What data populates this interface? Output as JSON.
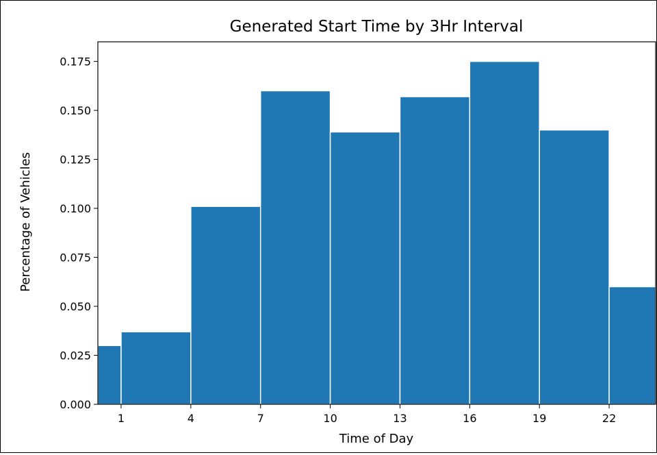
{
  "chart_data": {
    "type": "bar",
    "title": "Generated Start Time by 3Hr Interval",
    "xlabel": "Time of Day",
    "ylabel": "Percentage of Vehicles",
    "bins": [
      {
        "start": 0,
        "end": 1,
        "value": 0.03
      },
      {
        "start": 1,
        "end": 4,
        "value": 0.037
      },
      {
        "start": 4,
        "end": 7,
        "value": 0.101
      },
      {
        "start": 7,
        "end": 10,
        "value": 0.16
      },
      {
        "start": 10,
        "end": 13,
        "value": 0.139
      },
      {
        "start": 13,
        "end": 16,
        "value": 0.157
      },
      {
        "start": 16,
        "end": 19,
        "value": 0.175
      },
      {
        "start": 19,
        "end": 22,
        "value": 0.14
      },
      {
        "start": 22,
        "end": 24,
        "value": 0.06
      }
    ],
    "xlim": [
      0,
      24
    ],
    "ylim": [
      0,
      0.185
    ],
    "xticks": [
      1,
      4,
      7,
      10,
      13,
      16,
      19,
      22
    ],
    "xtick_labels": [
      "1",
      "4",
      "7",
      "10",
      "13",
      "16",
      "19",
      "22"
    ],
    "yticks": [
      0,
      0.025,
      0.05,
      0.075,
      0.1,
      0.125,
      0.15,
      0.175
    ],
    "ytick_labels": [
      "0.000",
      "0.025",
      "0.050",
      "0.075",
      "0.100",
      "0.125",
      "0.150",
      "0.175"
    ],
    "bar_color": "#1f77b4",
    "bar_edge_color": "#ffffff",
    "grid": false,
    "legend": false
  }
}
